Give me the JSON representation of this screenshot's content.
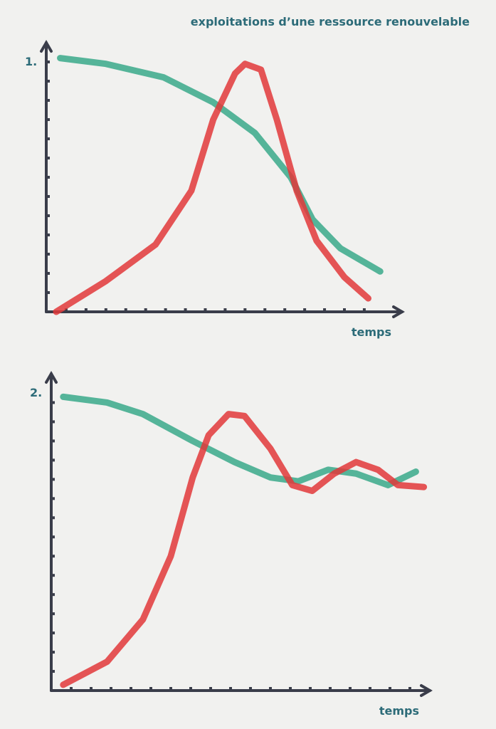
{
  "title": "exploitations d’une ressource renouvelable",
  "chart_data": [
    {
      "type": "line",
      "label": "1.",
      "xlabel": "temps",
      "xlim": [
        0,
        17.9
      ],
      "ylim": [
        0,
        14
      ],
      "xticks": [
        1,
        2,
        3,
        4,
        5,
        6,
        7,
        8,
        9,
        10,
        11,
        12,
        13,
        14,
        15,
        16
      ],
      "yticks": [
        1,
        2,
        3,
        4,
        5,
        6,
        7,
        8,
        9,
        10,
        11,
        12,
        13
      ],
      "series": [
        {
          "color": "#3aa98a",
          "x": [
            0.7,
            3,
            5.9,
            8.4,
            10.5,
            12.3,
            13.4,
            14.8,
            16.8
          ],
          "values": [
            13.2,
            12.9,
            12.2,
            10.9,
            9.3,
            7.0,
            4.8,
            3.3,
            2.1
          ]
        },
        {
          "color": "#e2383a",
          "x": [
            0.5,
            3,
            5.5,
            7.3,
            8.4,
            9.5,
            10,
            10.8,
            11.6,
            12.6,
            13.6,
            15,
            16.2
          ],
          "values": [
            0,
            1.6,
            3.5,
            6.3,
            10,
            12.4,
            12.9,
            12.6,
            10,
            6.3,
            3.7,
            1.8,
            0.7
          ]
        }
      ]
    },
    {
      "type": "line",
      "label": "2.",
      "xlabel": "temps",
      "xlim": [
        0,
        19
      ],
      "ylim": [
        0,
        16.5
      ],
      "xticks": [
        1,
        2,
        3,
        4,
        5,
        6,
        7,
        8,
        9,
        10,
        11,
        12,
        13,
        14,
        15,
        16,
        17,
        18
      ],
      "yticks": [
        1,
        2,
        3,
        4,
        5,
        6,
        7,
        8,
        9,
        10,
        11,
        12,
        13,
        14,
        15
      ],
      "series": [
        {
          "color": "#3aa98a",
          "x": [
            0.6,
            2.8,
            4.6,
            7.1,
            9.2,
            11,
            12.4,
            13.9,
            15.3,
            16.9,
            18.3
          ],
          "values": [
            15.3,
            15,
            14.4,
            13,
            11.9,
            11.1,
            10.9,
            11.5,
            11.3,
            10.7,
            11.4
          ]
        },
        {
          "color": "#e2383a",
          "x": [
            0.6,
            2.8,
            4.6,
            6,
            7.1,
            7.9,
            8.9,
            9.7,
            11,
            12.1,
            13.1,
            14.2,
            15.3,
            16.4,
            17.4,
            18.7
          ],
          "values": [
            0.3,
            1.5,
            3.7,
            7,
            11.1,
            13.3,
            14.4,
            14.3,
            12.6,
            10.7,
            10.4,
            11.3,
            11.9,
            11.5,
            10.7,
            10.6
          ]
        }
      ]
    }
  ]
}
